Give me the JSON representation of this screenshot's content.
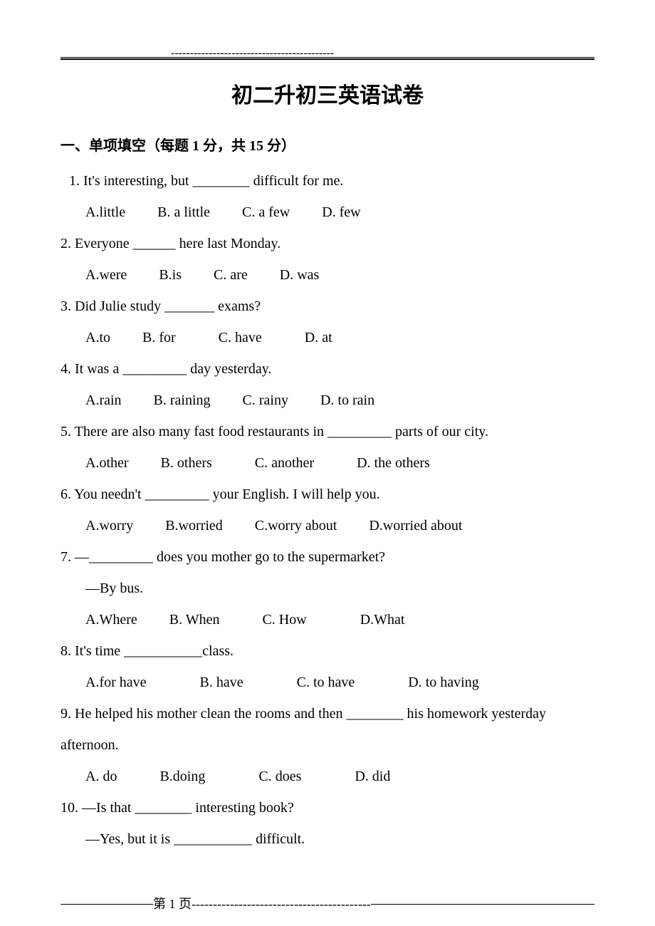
{
  "header": {
    "dashes": "-------------------------------------------"
  },
  "title": "初二升初三英语试卷",
  "section": {
    "heading": "一、单项填空（每题 1 分，共 15 分）"
  },
  "questions": {
    "q1": {
      "text": "1. It's interesting, but ________ difficult for me.",
      "optA": "A.little",
      "optB": "B. a little",
      "optC": "C. a few",
      "optD": "D. few"
    },
    "q2": {
      "text": "2. Everyone ______ here last Monday.",
      "optA": "A.were",
      "optB": "B.is",
      "optC": "C. are",
      "optD": "D. was"
    },
    "q3": {
      "text": "3. Did Julie study _______ exams?",
      "optA": "A.to",
      "optB": "B. for",
      "optC": "C. have",
      "optD": "D. at"
    },
    "q4": {
      "text": "4. It was a _________ day yesterday.",
      "optA": "A.rain",
      "optB": "B. raining",
      "optC": "C. rainy",
      "optD": "D. to rain"
    },
    "q5": {
      "text": "5. There are also many fast food restaurants in _________ parts of our city.",
      "optA": "A.other",
      "optB": "B. others",
      "optC": "C. another",
      "optD": "D. the others"
    },
    "q6": {
      "text": "6. You needn't _________ your English. I will help you.",
      "optA": "A.worry",
      "optB": "B.worried",
      "optC": "C.worry about",
      "optD": "D.worried about"
    },
    "q7": {
      "text": "7. —_________ does you mother go to the supermarket?",
      "sub": "—By bus.",
      "optA": "A.Where",
      "optB": "B. When",
      "optC": "C. How",
      "optD": "D.What"
    },
    "q8": {
      "text": "8. It's time ___________class.",
      "optA": "A.for have",
      "optB": "B. have",
      "optC": "C. to have",
      "optD": "D. to having"
    },
    "q9": {
      "text": "9. He helped his mother clean the rooms and then ________ his homework yesterday afternoon.",
      "optA": "A. do",
      "optB": "B.doing",
      "optC": "C. does",
      "optD": "D. did"
    },
    "q10": {
      "text": "10. —Is that ________ interesting book?",
      "sub": "—Yes, but it is ___________ difficult."
    }
  },
  "footer": {
    "text": "第 1 页",
    "dashes": "------------------------------------------"
  }
}
